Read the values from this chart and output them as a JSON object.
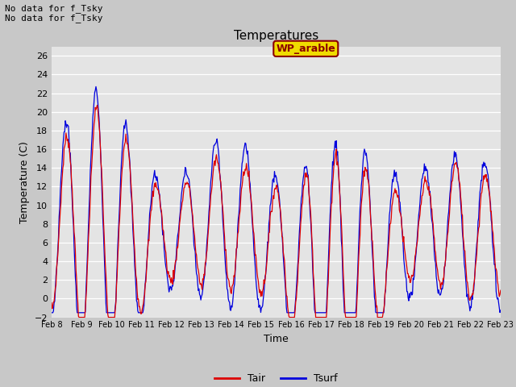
{
  "title": "Temperatures",
  "xlabel": "Time",
  "ylabel": "Temperature (C)",
  "ylim": [
    -2,
    27
  ],
  "yticks": [
    -2,
    0,
    2,
    4,
    6,
    8,
    10,
    12,
    14,
    16,
    18,
    20,
    22,
    24,
    26
  ],
  "xtick_labels": [
    "Feb 8",
    "Feb 9",
    "Feb 10",
    "Feb 11",
    "Feb 12",
    "Feb 13",
    "Feb 14",
    "Feb 15",
    "Feb 16",
    "Feb 17",
    "Feb 18",
    "Feb 19",
    "Feb 20",
    "Feb 21",
    "Feb 22",
    "Feb 23"
  ],
  "annotation_text": "No data for f_Tsky\nNo data for f_Tsky",
  "legend_box_label": "WP_arable",
  "fig_bg_color": "#c8c8c8",
  "plot_bg_color": "#e4e4e4",
  "tair_color": "#dd0000",
  "tsurf_color": "#0000dd",
  "legend_tair": "Tair",
  "legend_tsurf": "Tsurf",
  "n_points": 720
}
